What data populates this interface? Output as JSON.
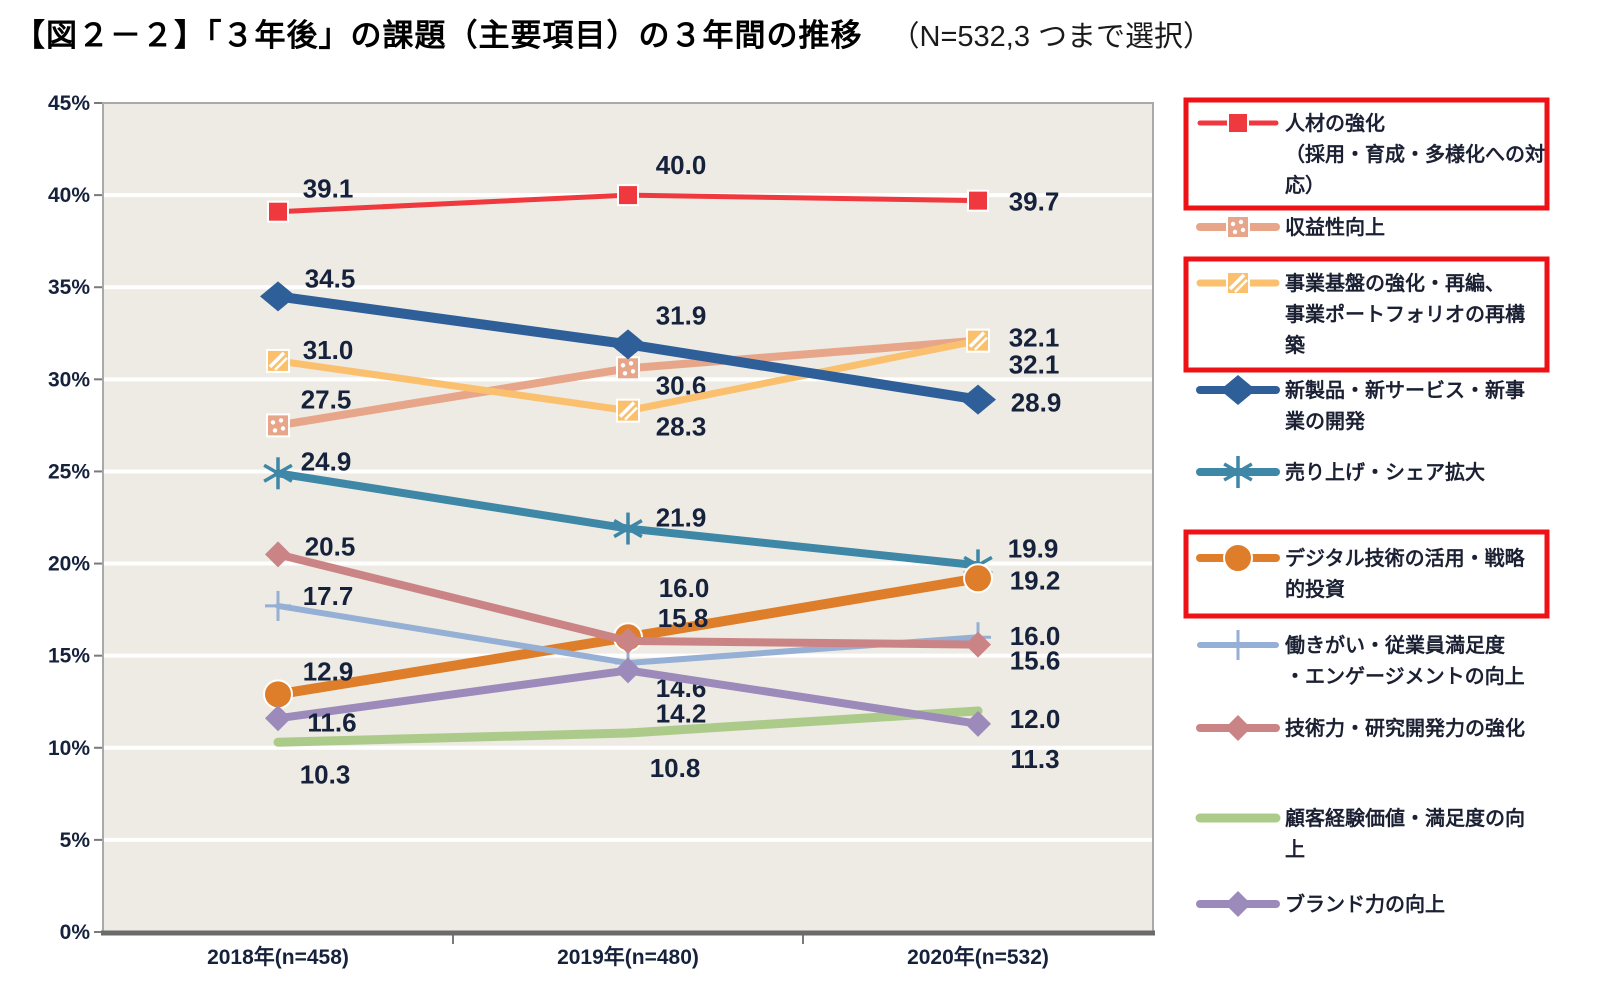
{
  "title": {
    "main": "【図２－２】「３年後」の課題（主要項目）の３年間の推移",
    "note": "（N=532,3 つまで選択）"
  },
  "colors": {
    "highlight_box": "#ee1116",
    "plot_background": "#edebe3",
    "gridline": "#ffffff",
    "axis_text": "#16223c",
    "plot_border": "#a9a9a9",
    "axis_line": "#6b6b6b"
  },
  "chart_data": {
    "type": "line",
    "title": "「3年後」の課題（主要項目）の3年間の推移",
    "sample_note": "N=532, 3つまで選択",
    "x_categories": [
      "2018年(n=458)",
      "2019年(n=480)",
      "2020年(n=532)"
    ],
    "xlabel": "",
    "ylabel": "",
    "y_axis": {
      "min": 0,
      "max": 45,
      "step": 5,
      "unit": "%"
    },
    "y_tick_labels": [
      "0%",
      "5%",
      "10%",
      "15%",
      "20%",
      "25%",
      "30%",
      "35%",
      "40%",
      "45%"
    ],
    "grid": true,
    "legend_position": "right",
    "series": [
      {
        "name": "人材の強化（採用・育成・多様化への対応）",
        "legend_lines": [
          "人材の強化",
          "（採用・育成・多様化への対",
          "応）"
        ],
        "color": "#f0393f",
        "marker": "square",
        "values": [
          39.1,
          40.0,
          39.7
        ],
        "highlighted": true
      },
      {
        "name": "収益性向上",
        "legend_lines": [
          "収益性向上"
        ],
        "color": "#e7a68a",
        "marker": "square-dotted",
        "values": [
          27.5,
          30.6,
          32.1
        ],
        "highlighted": false
      },
      {
        "name": "事業基盤の強化・再編、事業ポートフォリオの再構築",
        "legend_lines": [
          "事業基盤の強化・再編、",
          "事業ポートフォリオの再構",
          "築"
        ],
        "color": "#fac06e",
        "marker": "square-hatched",
        "values": [
          31.0,
          28.3,
          32.1
        ],
        "highlighted": true
      },
      {
        "name": "新製品・新サービス・新事業の開発",
        "legend_lines": [
          "新製品・新サービス・新事",
          "業の開発"
        ],
        "color": "#2f5f99",
        "marker": "diamond-large",
        "values": [
          34.5,
          31.9,
          28.9
        ],
        "highlighted": false
      },
      {
        "name": "売り上げ・シェア拡大",
        "legend_lines": [
          "売り上げ・シェア拡大"
        ],
        "color": "#3f87a6",
        "marker": "asterisk",
        "values": [
          24.9,
          21.9,
          19.9
        ],
        "highlighted": false
      },
      {
        "name": "デジタル技術の活用・戦略的投資",
        "legend_lines": [
          "デジタル技術の活用・戦略",
          "的投資"
        ],
        "color": "#de7e2b",
        "marker": "circle",
        "values": [
          12.9,
          16.0,
          19.2
        ],
        "highlighted": true
      },
      {
        "name": "働きがい・従業員満足度・エンゲージメントの向上",
        "legend_lines": [
          "働きがい・従業員満足度",
          "・エンゲージメントの向上"
        ],
        "color": "#95afd5",
        "marker": "plus",
        "values": [
          17.7,
          14.6,
          16.0
        ],
        "highlighted": false
      },
      {
        "name": "技術力・研究開発力の強化",
        "legend_lines": [
          "技術力・研究開発力の強化"
        ],
        "color": "#cb8486",
        "marker": "diamond",
        "values": [
          20.5,
          15.8,
          15.6
        ],
        "highlighted": false
      },
      {
        "name": "顧客経験価値・満足度の向上",
        "legend_lines": [
          "顧客経験価値・満足度の向",
          "上"
        ],
        "color": "#accb8a",
        "marker": "none",
        "values": [
          10.3,
          10.8,
          12.0
        ],
        "highlighted": false
      },
      {
        "name": "ブランド力の向上",
        "legend_lines": [
          "ブランド力の向上"
        ],
        "color": "#9c8aba",
        "marker": "diamond",
        "values": [
          11.6,
          14.2,
          11.3
        ],
        "highlighted": false
      }
    ]
  }
}
